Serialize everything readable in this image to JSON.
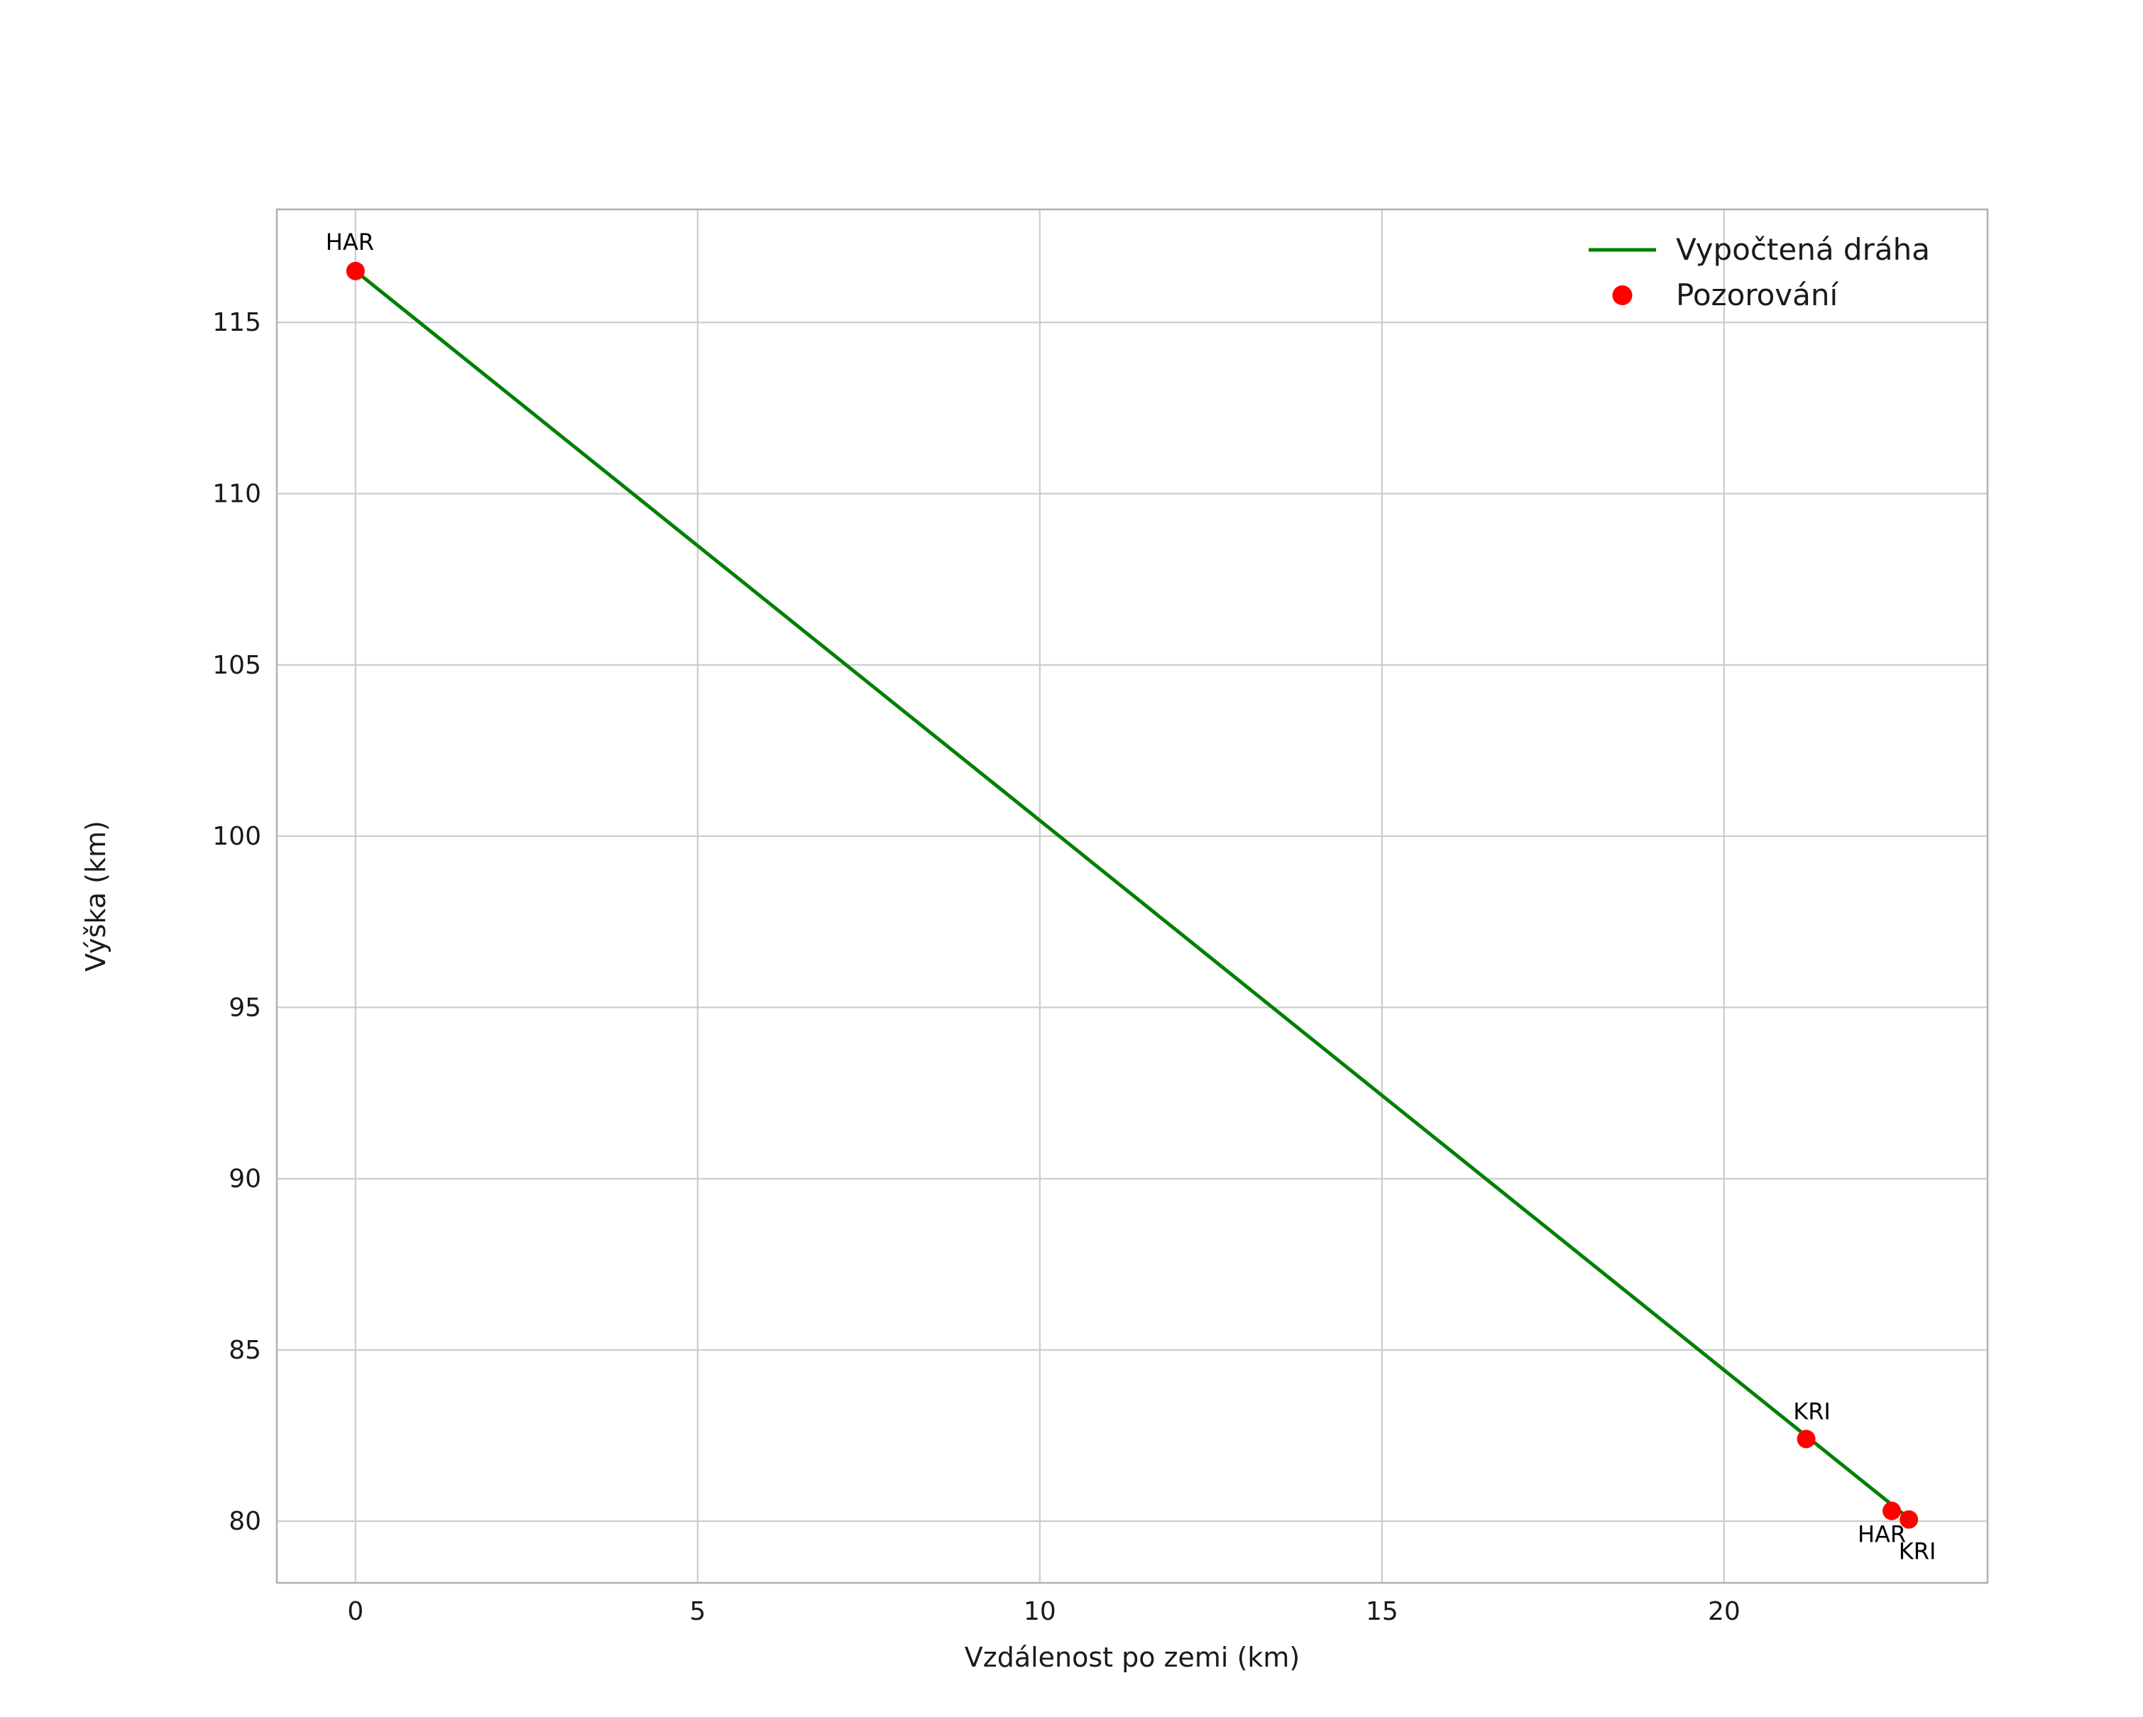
{
  "figure": {
    "background": "#ffffff",
    "plot_background": "#ffffff",
    "grid_color": "#cccccc",
    "border_color": "#b0b0b0",
    "text_color": "#1a1a1a",
    "annotation_color": "#000000"
  },
  "chart_data": {
    "type": "line",
    "title": "",
    "xlabel": "Vzdálenost po zemi (km)",
    "ylabel": "Výška (km)",
    "xlim": [
      -1.15,
      23.85
    ],
    "ylim": [
      78.2,
      118.3
    ],
    "xticks": [
      0,
      5,
      10,
      15,
      20
    ],
    "yticks": [
      80,
      85,
      90,
      95,
      100,
      105,
      110,
      115
    ],
    "grid": true,
    "legend_position": "upper right",
    "series": [
      {
        "name": "Vypočtená dráha",
        "type": "line",
        "color": "#008000",
        "line_width": 5,
        "points": [
          [
            0,
            116.5
          ],
          [
            5,
            108.48
          ],
          [
            10,
            100.46
          ],
          [
            15,
            92.43
          ],
          [
            20,
            84.41
          ],
          [
            22.75,
            80.0
          ]
        ]
      }
    ],
    "observations": {
      "name": "Pozorování",
      "type": "scatter",
      "color": "#ff0000",
      "marker_radius": 13,
      "points": [
        {
          "label": "HAR",
          "x": 0.0,
          "y": 116.5,
          "label_dx": -8,
          "label_dy": -30
        },
        {
          "label": "KRI",
          "x": 21.2,
          "y": 82.4,
          "label_dx": 8,
          "label_dy": -28
        },
        {
          "label": "HAR",
          "x": 22.45,
          "y": 80.3,
          "label_dx": -14,
          "label_dy": 44
        },
        {
          "label": "KRI",
          "x": 22.7,
          "y": 80.05,
          "label_dx": 12,
          "label_dy": 56
        }
      ]
    },
    "legend": {
      "entries": [
        {
          "label": "Vypočtená dráha",
          "sample": "line",
          "color": "#008000"
        },
        {
          "label": "Pozorování",
          "sample": "point",
          "color": "#ff0000"
        }
      ]
    }
  }
}
